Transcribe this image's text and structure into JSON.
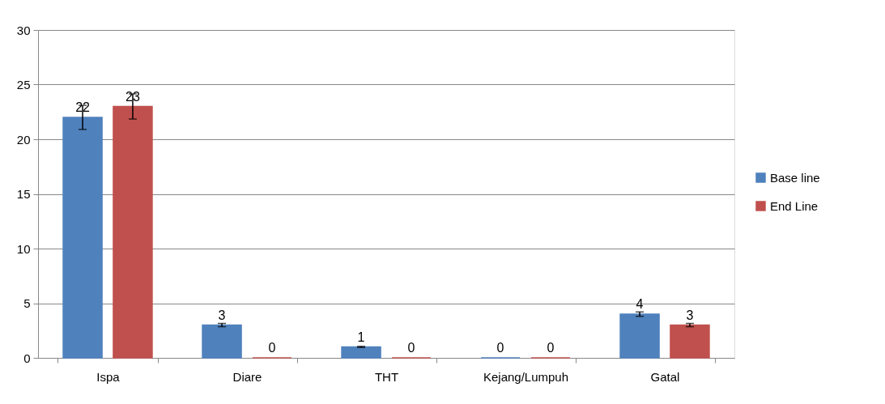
{
  "chart_data": {
    "type": "bar",
    "categories": [
      "Ispa",
      "Diare",
      "THT",
      "Kejang/Lumpuh",
      "Gatal"
    ],
    "series": [
      {
        "name": "Base line",
        "color": "#4f81bd",
        "values": [
          22,
          3,
          1,
          0,
          4
        ],
        "errors": [
          1.1,
          0.15,
          0.05,
          null,
          0.2
        ]
      },
      {
        "name": "End Line",
        "color": "#c0504d",
        "values": [
          23,
          0,
          0,
          0,
          3
        ],
        "errors": [
          1.15,
          null,
          null,
          null,
          0.15
        ]
      }
    ],
    "ylim": [
      0,
      30
    ],
    "yticks": [
      0,
      5,
      10,
      15,
      20,
      25,
      30
    ],
    "grid": "y",
    "legend": "right",
    "data_labels": true
  }
}
